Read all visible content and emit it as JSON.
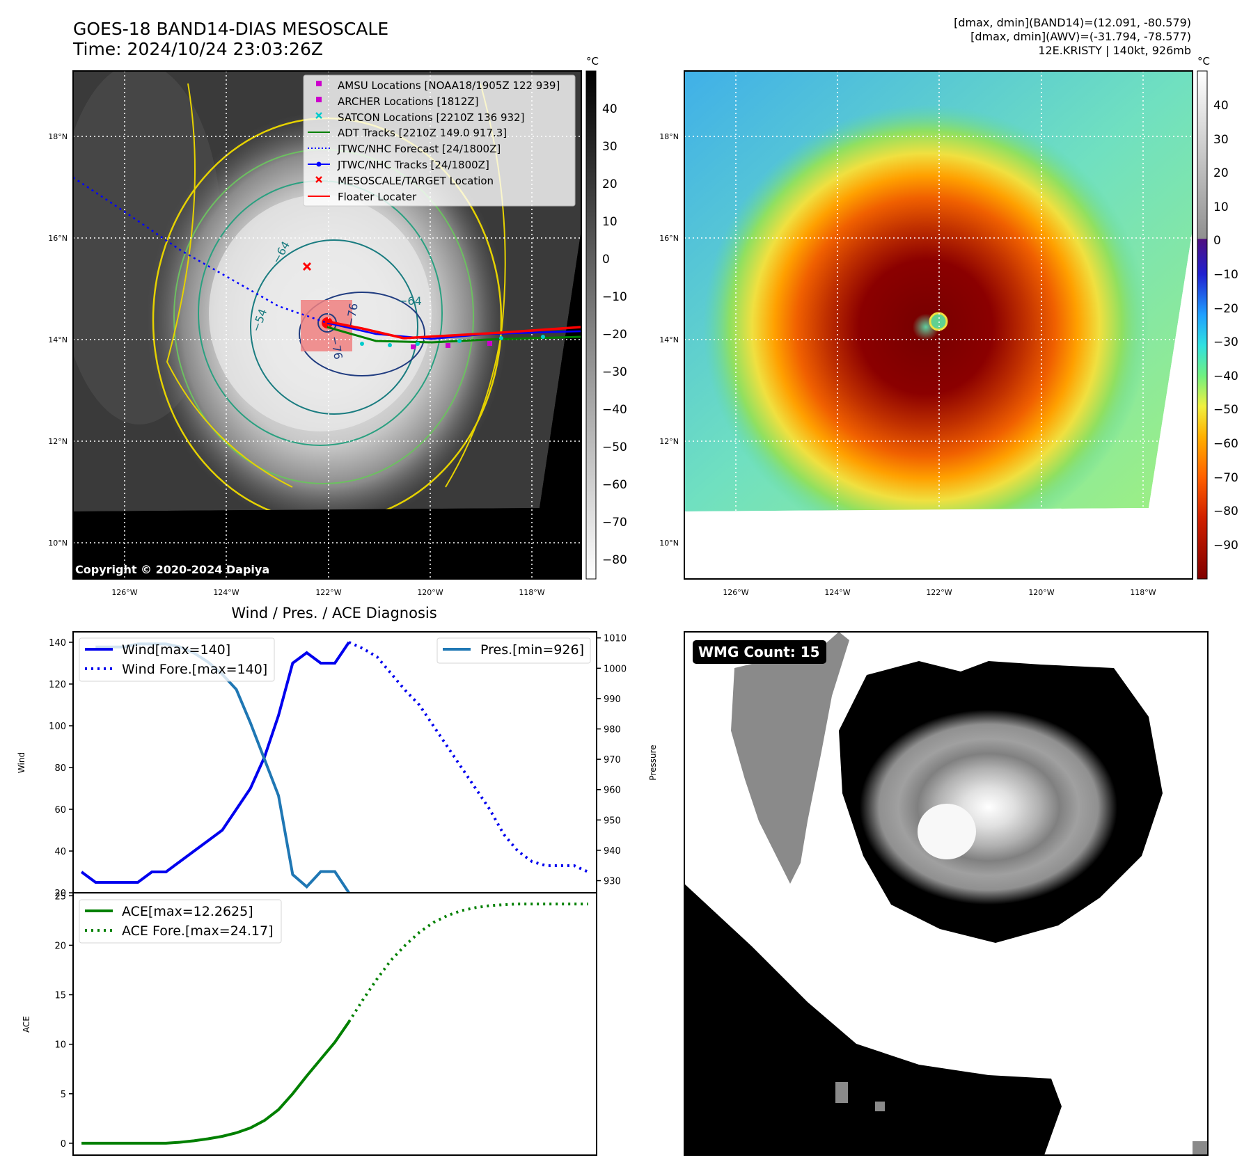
{
  "header": {
    "title_line1": "GOES-18 BAND14-DIAS MESOSCALE",
    "title_line2": "Time: 2024/10/24 23:03:26Z",
    "info_line1": "[dmax, dmin](BAND14)=(12.091, -80.579)",
    "info_line2": "[dmax, dmin](AWV)=(-31.794, -78.577)",
    "info_line3": "12E.KRISTY | 140kt, 926mb"
  },
  "colors": {
    "wind": "#0000ee",
    "pressure": "#1f77b4",
    "ace": "#008000",
    "amsu": "#cc00cc",
    "satcon": "#00cccc",
    "adt": "#008000",
    "jtwc": "#0000ff",
    "target": "#ff0000",
    "floater": "#ff0000"
  },
  "map_panel": {
    "unit": "°C",
    "colorbar_ticks": [
      "40",
      "30",
      "20",
      "10",
      "0",
      "−10",
      "−20",
      "−30",
      "−40",
      "−50",
      "−60",
      "−70",
      "−80"
    ],
    "lat_labels": [
      "18°N",
      "16°N",
      "14°N",
      "12°N",
      "10°N"
    ],
    "lon_labels": [
      "126°W",
      "124°W",
      "122°W",
      "120°W",
      "118°W"
    ],
    "copyright": "Copyright © 2020-2024 Dapiya",
    "contour_labels": [
      "−64",
      "−54",
      "−64",
      "−76",
      "−76"
    ],
    "legend": [
      {
        "label": "AMSU Locations [NOAA18/1905Z 122 939]",
        "marker": "square",
        "color": "#cc00cc"
      },
      {
        "label": "ARCHER Locations [1812Z]",
        "marker": "square",
        "color": "#cc00cc"
      },
      {
        "label": "SATCON Locations [2210Z 136 932]",
        "marker": "x",
        "color": "#00cccc"
      },
      {
        "label": "ADT Tracks [2210Z 149.0 917.3]",
        "marker": "line",
        "color": "#008000"
      },
      {
        "label": "JTWC/NHC Forecast [24/1800Z]",
        "marker": "dotted",
        "color": "#0000ff"
      },
      {
        "label": "JTWC/NHC Tracks [24/1800Z]",
        "marker": "line-dot",
        "color": "#0000ff"
      },
      {
        "label": "MESOSCALE/TARGET Location",
        "marker": "x",
        "color": "#ff0000"
      },
      {
        "label": "Floater Locater",
        "marker": "line",
        "color": "#ff0000"
      }
    ]
  },
  "ir_panel": {
    "unit": "°C",
    "colorbar_ticks": [
      "40",
      "30",
      "20",
      "10",
      "0",
      "−10",
      "−20",
      "−30",
      "−40",
      "−50",
      "−60",
      "−70",
      "−80",
      "−90"
    ],
    "lat_labels": [
      "18°N",
      "16°N",
      "14°N",
      "12°N",
      "10°N"
    ],
    "lon_labels": [
      "126°W",
      "124°W",
      "122°W",
      "120°W",
      "118°W"
    ]
  },
  "wmg_panel": {
    "badge": "WMG Count: 15"
  },
  "chart_data": [
    {
      "type": "line",
      "title": "Wind / Pres. / ACE Diagnosis",
      "ylabel": "Wind",
      "y2label": "Pressure",
      "ylim": [
        20,
        145
      ],
      "y2lim": [
        926,
        1012
      ],
      "yticks": [
        20,
        40,
        60,
        80,
        100,
        120,
        140
      ],
      "y2ticks": [
        930,
        940,
        950,
        960,
        970,
        980,
        990,
        1000,
        1010
      ],
      "x": [
        0,
        1,
        2,
        3,
        4,
        5,
        6,
        7,
        8,
        9,
        10,
        11,
        12,
        13,
        14,
        15,
        16,
        17,
        18,
        19,
        20,
        21,
        22,
        23,
        24,
        25,
        26,
        27,
        28,
        29,
        30,
        31,
        32,
        33,
        34,
        35,
        36
      ],
      "series": [
        {
          "name": "Wind[max=140]",
          "style": "solid",
          "x": [
            0,
            1,
            2,
            3,
            4,
            5,
            6,
            7,
            8,
            9,
            10,
            11,
            12,
            13,
            14,
            15,
            16,
            17,
            18,
            19
          ],
          "values": [
            30,
            25,
            25,
            25,
            25,
            30,
            30,
            35,
            40,
            45,
            50,
            60,
            70,
            85,
            105,
            130,
            135,
            130,
            130,
            140
          ]
        },
        {
          "name": "Wind Fore.[max=140]",
          "style": "dotted",
          "x": [
            19,
            20,
            21,
            22,
            23,
            24,
            25,
            26,
            27,
            28,
            29,
            30,
            31,
            32,
            33,
            34,
            35,
            36
          ],
          "values": [
            140,
            137,
            133,
            125,
            117,
            110,
            100,
            90,
            80,
            70,
            60,
            48,
            40,
            35,
            33,
            33,
            33,
            30
          ]
        },
        {
          "name": "Pres.[min=926]",
          "style": "solid",
          "axis": "right",
          "x": [
            1,
            2,
            3,
            4,
            5,
            6,
            7,
            8,
            9,
            10,
            11,
            12,
            13,
            14,
            15,
            16,
            17,
            18,
            19
          ],
          "values": [
            1007,
            1007,
            1007,
            1008,
            1008,
            1008,
            1007,
            1005,
            1002,
            998,
            993,
            982,
            970,
            958,
            932,
            928,
            933,
            933,
            926
          ]
        }
      ]
    },
    {
      "type": "line",
      "ylabel": "ACE",
      "ylim": [
        -1.2,
        25.3
      ],
      "yticks": [
        0,
        5,
        10,
        15,
        20,
        25
      ],
      "series": [
        {
          "name": "ACE[max=12.2625]",
          "style": "solid",
          "x": [
            0,
            1,
            2,
            3,
            4,
            5,
            6,
            7,
            8,
            9,
            10,
            11,
            12,
            13,
            14,
            15,
            16,
            17,
            18,
            19
          ],
          "values": [
            0,
            0,
            0,
            0,
            0,
            0,
            0,
            0.1,
            0.25,
            0.45,
            0.7,
            1.05,
            1.55,
            2.3,
            3.4,
            5.0,
            6.8,
            8.5,
            10.2,
            12.26
          ]
        },
        {
          "name": "ACE Fore.[max=24.17]",
          "style": "dotted",
          "x": [
            19,
            20,
            21,
            22,
            23,
            24,
            25,
            26,
            27,
            28,
            29,
            30,
            31,
            32,
            33,
            34,
            35,
            36
          ],
          "values": [
            12.26,
            14.5,
            16.6,
            18.5,
            20.0,
            21.3,
            22.3,
            23.0,
            23.5,
            23.8,
            24.0,
            24.1,
            24.17,
            24.17,
            24.17,
            24.17,
            24.17,
            24.17
          ]
        }
      ]
    }
  ]
}
